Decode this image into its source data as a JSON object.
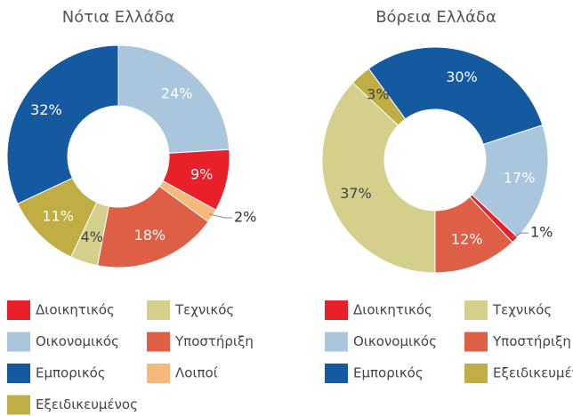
{
  "chart_data": [
    {
      "type": "donut",
      "title": "Νότια Ελλάδα",
      "categories": [
        "Διοικητικός",
        "Τεχνικός",
        "Οικονομικός",
        "Υποστήριξη",
        "Εμπορικός",
        "Λοιποί",
        "Εξειδικευμένος"
      ],
      "values": [
        9,
        4,
        24,
        18,
        32,
        2,
        11
      ],
      "value_labels": [
        "9%",
        "4%",
        "24%",
        "18%",
        "32%",
        "2%",
        "11%"
      ],
      "colors": [
        "#e8202a",
        "#d5cf8c",
        "#a9c6dc",
        "#dd5f45",
        "#155aa0",
        "#f7b97b",
        "#c0ad44"
      ]
    },
    {
      "type": "donut",
      "title": "Βόρεια Ελλάδα",
      "categories": [
        "Διοικητικός",
        "Τεχνικός",
        "Οικονομικός",
        "Υποστήριξη",
        "Εμπορικός",
        "Εξειδικευμένος"
      ],
      "values": [
        1,
        37,
        17,
        12,
        30,
        3
      ],
      "value_labels": [
        "1%",
        "37%",
        "17%",
        "12%",
        "30%",
        "3%"
      ],
      "colors": [
        "#e8202a",
        "#d5cf8c",
        "#a9c6dc",
        "#dd5f45",
        "#155aa0",
        "#c0ad44"
      ]
    }
  ]
}
